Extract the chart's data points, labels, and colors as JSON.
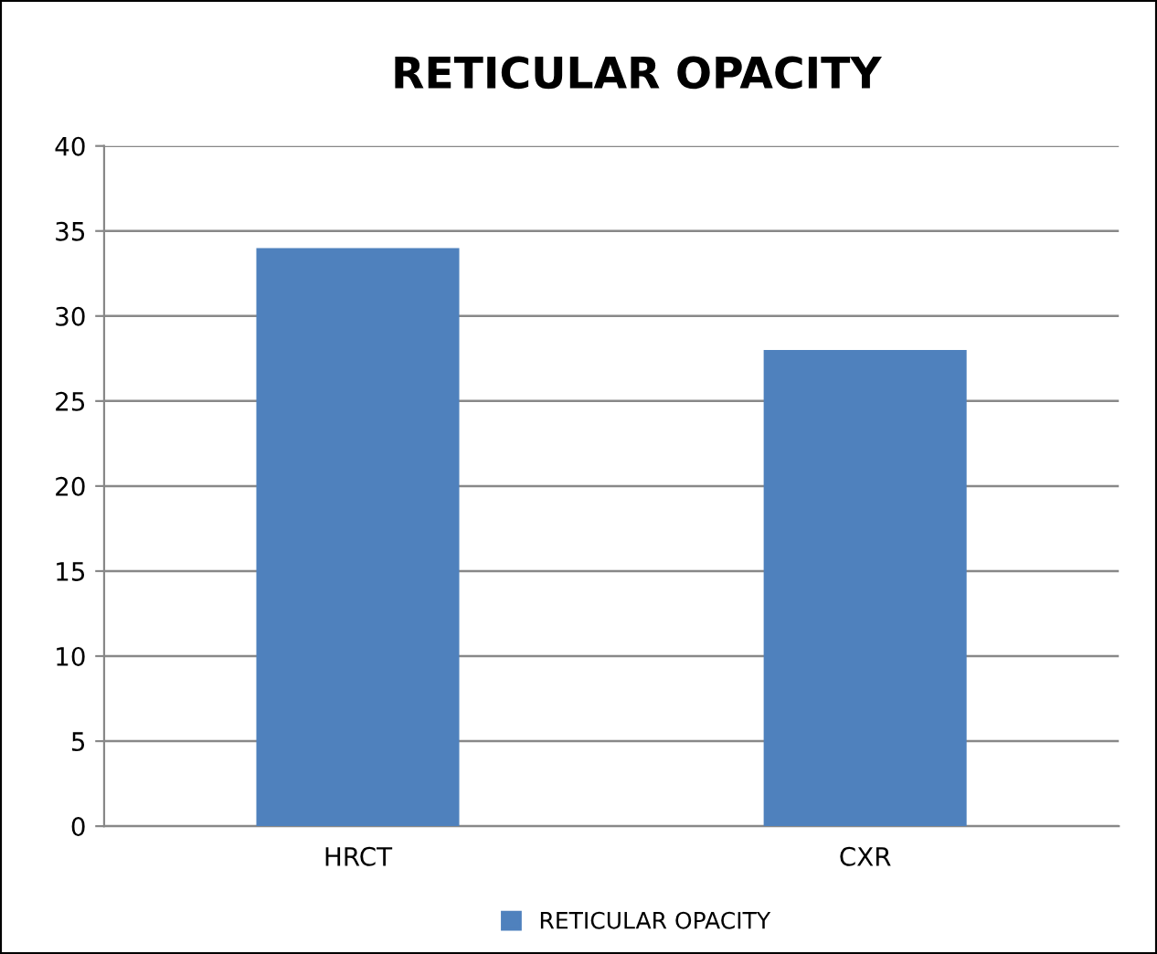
{
  "chart_data": {
    "type": "bar",
    "title": "RETICULAR OPACITY",
    "categories": [
      "HRCT",
      "CXR"
    ],
    "series": [
      {
        "name": "RETICULAR OPACITY",
        "color": "#4f81bd",
        "values": [
          34,
          28
        ]
      }
    ],
    "ylim": [
      0,
      40
    ],
    "yticks": [
      0,
      5,
      10,
      15,
      20,
      25,
      30,
      35,
      40
    ],
    "grid": "y",
    "legend": "bottom"
  }
}
